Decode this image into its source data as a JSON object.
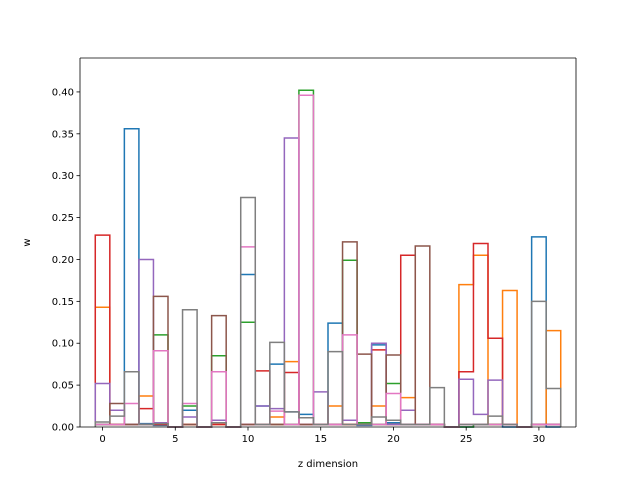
{
  "chart_data": {
    "type": "step",
    "title": "",
    "xlabel": "z dimension",
    "ylabel": "w",
    "xlim": [
      -1.55,
      32.55
    ],
    "ylim": [
      0,
      0.4405
    ],
    "x_ticks": [
      0,
      5,
      10,
      15,
      20,
      25,
      30
    ],
    "y_ticks": [
      0.0,
      0.05,
      0.1,
      0.15,
      0.2,
      0.25,
      0.3,
      0.35,
      0.4
    ],
    "x_tick_labels": [
      "0",
      "5",
      "10",
      "15",
      "20",
      "25",
      "30"
    ],
    "y_tick_labels": [
      "0.00",
      "0.05",
      "0.10",
      "0.15",
      "0.20",
      "0.25",
      "0.30",
      "0.35",
      "0.40"
    ],
    "bin_start": 0,
    "bin_width": 1,
    "grid": false,
    "legend": "none",
    "series": [
      {
        "color": "#1f77b4",
        "values": [
          0.003,
          0.003,
          0.356,
          0.004,
          0.002,
          0.0,
          0.02,
          0.0,
          0.005,
          0.0,
          0.182,
          0.025,
          0.075,
          0.018,
          0.015,
          0.003,
          0.124,
          0.003,
          0.002,
          0.098,
          0.005,
          0.003,
          0.003,
          0.003,
          0.0,
          0.0,
          0.003,
          0.003,
          0.0,
          0.0,
          0.227,
          0.0
        ]
      },
      {
        "color": "#ff7f0e",
        "values": [
          0.143,
          0.003,
          0.003,
          0.037,
          0.003,
          0.0,
          0.003,
          0.0,
          0.003,
          0.0,
          0.003,
          0.003,
          0.012,
          0.078,
          0.003,
          0.003,
          0.025,
          0.003,
          0.003,
          0.025,
          0.003,
          0.035,
          0.003,
          0.003,
          0.0,
          0.17,
          0.205,
          0.003,
          0.163,
          0.0,
          0.003,
          0.115
        ]
      },
      {
        "color": "#2ca02c",
        "values": [
          0.003,
          0.003,
          0.003,
          0.003,
          0.11,
          0.0,
          0.025,
          0.0,
          0.085,
          0.0,
          0.125,
          0.003,
          0.003,
          0.003,
          0.402,
          0.003,
          0.003,
          0.199,
          0.005,
          0.003,
          0.052,
          0.003,
          0.003,
          0.003,
          0.0,
          0.0,
          0.003,
          0.003,
          0.003,
          0.0,
          0.003,
          0.003
        ]
      },
      {
        "color": "#d62728",
        "values": [
          0.229,
          0.003,
          0.003,
          0.022,
          0.003,
          0.0,
          0.003,
          0.0,
          0.003,
          0.0,
          0.003,
          0.067,
          0.003,
          0.065,
          0.003,
          0.003,
          0.003,
          0.003,
          0.003,
          0.092,
          0.003,
          0.205,
          0.003,
          0.003,
          0.0,
          0.066,
          0.219,
          0.106,
          0.003,
          0.0,
          0.003,
          0.003
        ]
      },
      {
        "color": "#9467bd",
        "values": [
          0.052,
          0.02,
          0.003,
          0.2,
          0.005,
          0.0,
          0.012,
          0.0,
          0.008,
          0.0,
          0.003,
          0.025,
          0.022,
          0.345,
          0.003,
          0.042,
          0.003,
          0.008,
          0.003,
          0.1,
          0.003,
          0.02,
          0.003,
          0.003,
          0.0,
          0.057,
          0.015,
          0.056,
          0.003,
          0.0,
          0.003,
          0.003
        ]
      },
      {
        "color": "#8c564b",
        "values": [
          0.003,
          0.028,
          0.003,
          0.003,
          0.156,
          0.0,
          0.003,
          0.0,
          0.133,
          0.0,
          0.003,
          0.003,
          0.003,
          0.003,
          0.003,
          0.003,
          0.003,
          0.221,
          0.087,
          0.003,
          0.086,
          0.003,
          0.216,
          0.003,
          0.0,
          0.003,
          0.003,
          0.003,
          0.003,
          0.0,
          0.003,
          0.003
        ]
      },
      {
        "color": "#e377c2",
        "values": [
          0.003,
          0.003,
          0.028,
          0.003,
          0.091,
          0.0,
          0.028,
          0.0,
          0.066,
          0.0,
          0.215,
          0.003,
          0.019,
          0.003,
          0.396,
          0.003,
          0.003,
          0.11,
          0.003,
          0.003,
          0.04,
          0.003,
          0.003,
          0.003,
          0.0,
          0.003,
          0.003,
          0.003,
          0.003,
          0.0,
          0.003,
          0.003
        ]
      },
      {
        "color": "#7f7f7f",
        "values": [
          0.006,
          0.013,
          0.066,
          0.003,
          0.004,
          0.0,
          0.14,
          0.0,
          0.005,
          0.0,
          0.274,
          0.003,
          0.101,
          0.018,
          0.011,
          0.003,
          0.09,
          0.003,
          0.003,
          0.012,
          0.008,
          0.003,
          0.003,
          0.047,
          0.0,
          0.003,
          0.003,
          0.013,
          0.003,
          0.0,
          0.15,
          0.046
        ]
      }
    ]
  }
}
